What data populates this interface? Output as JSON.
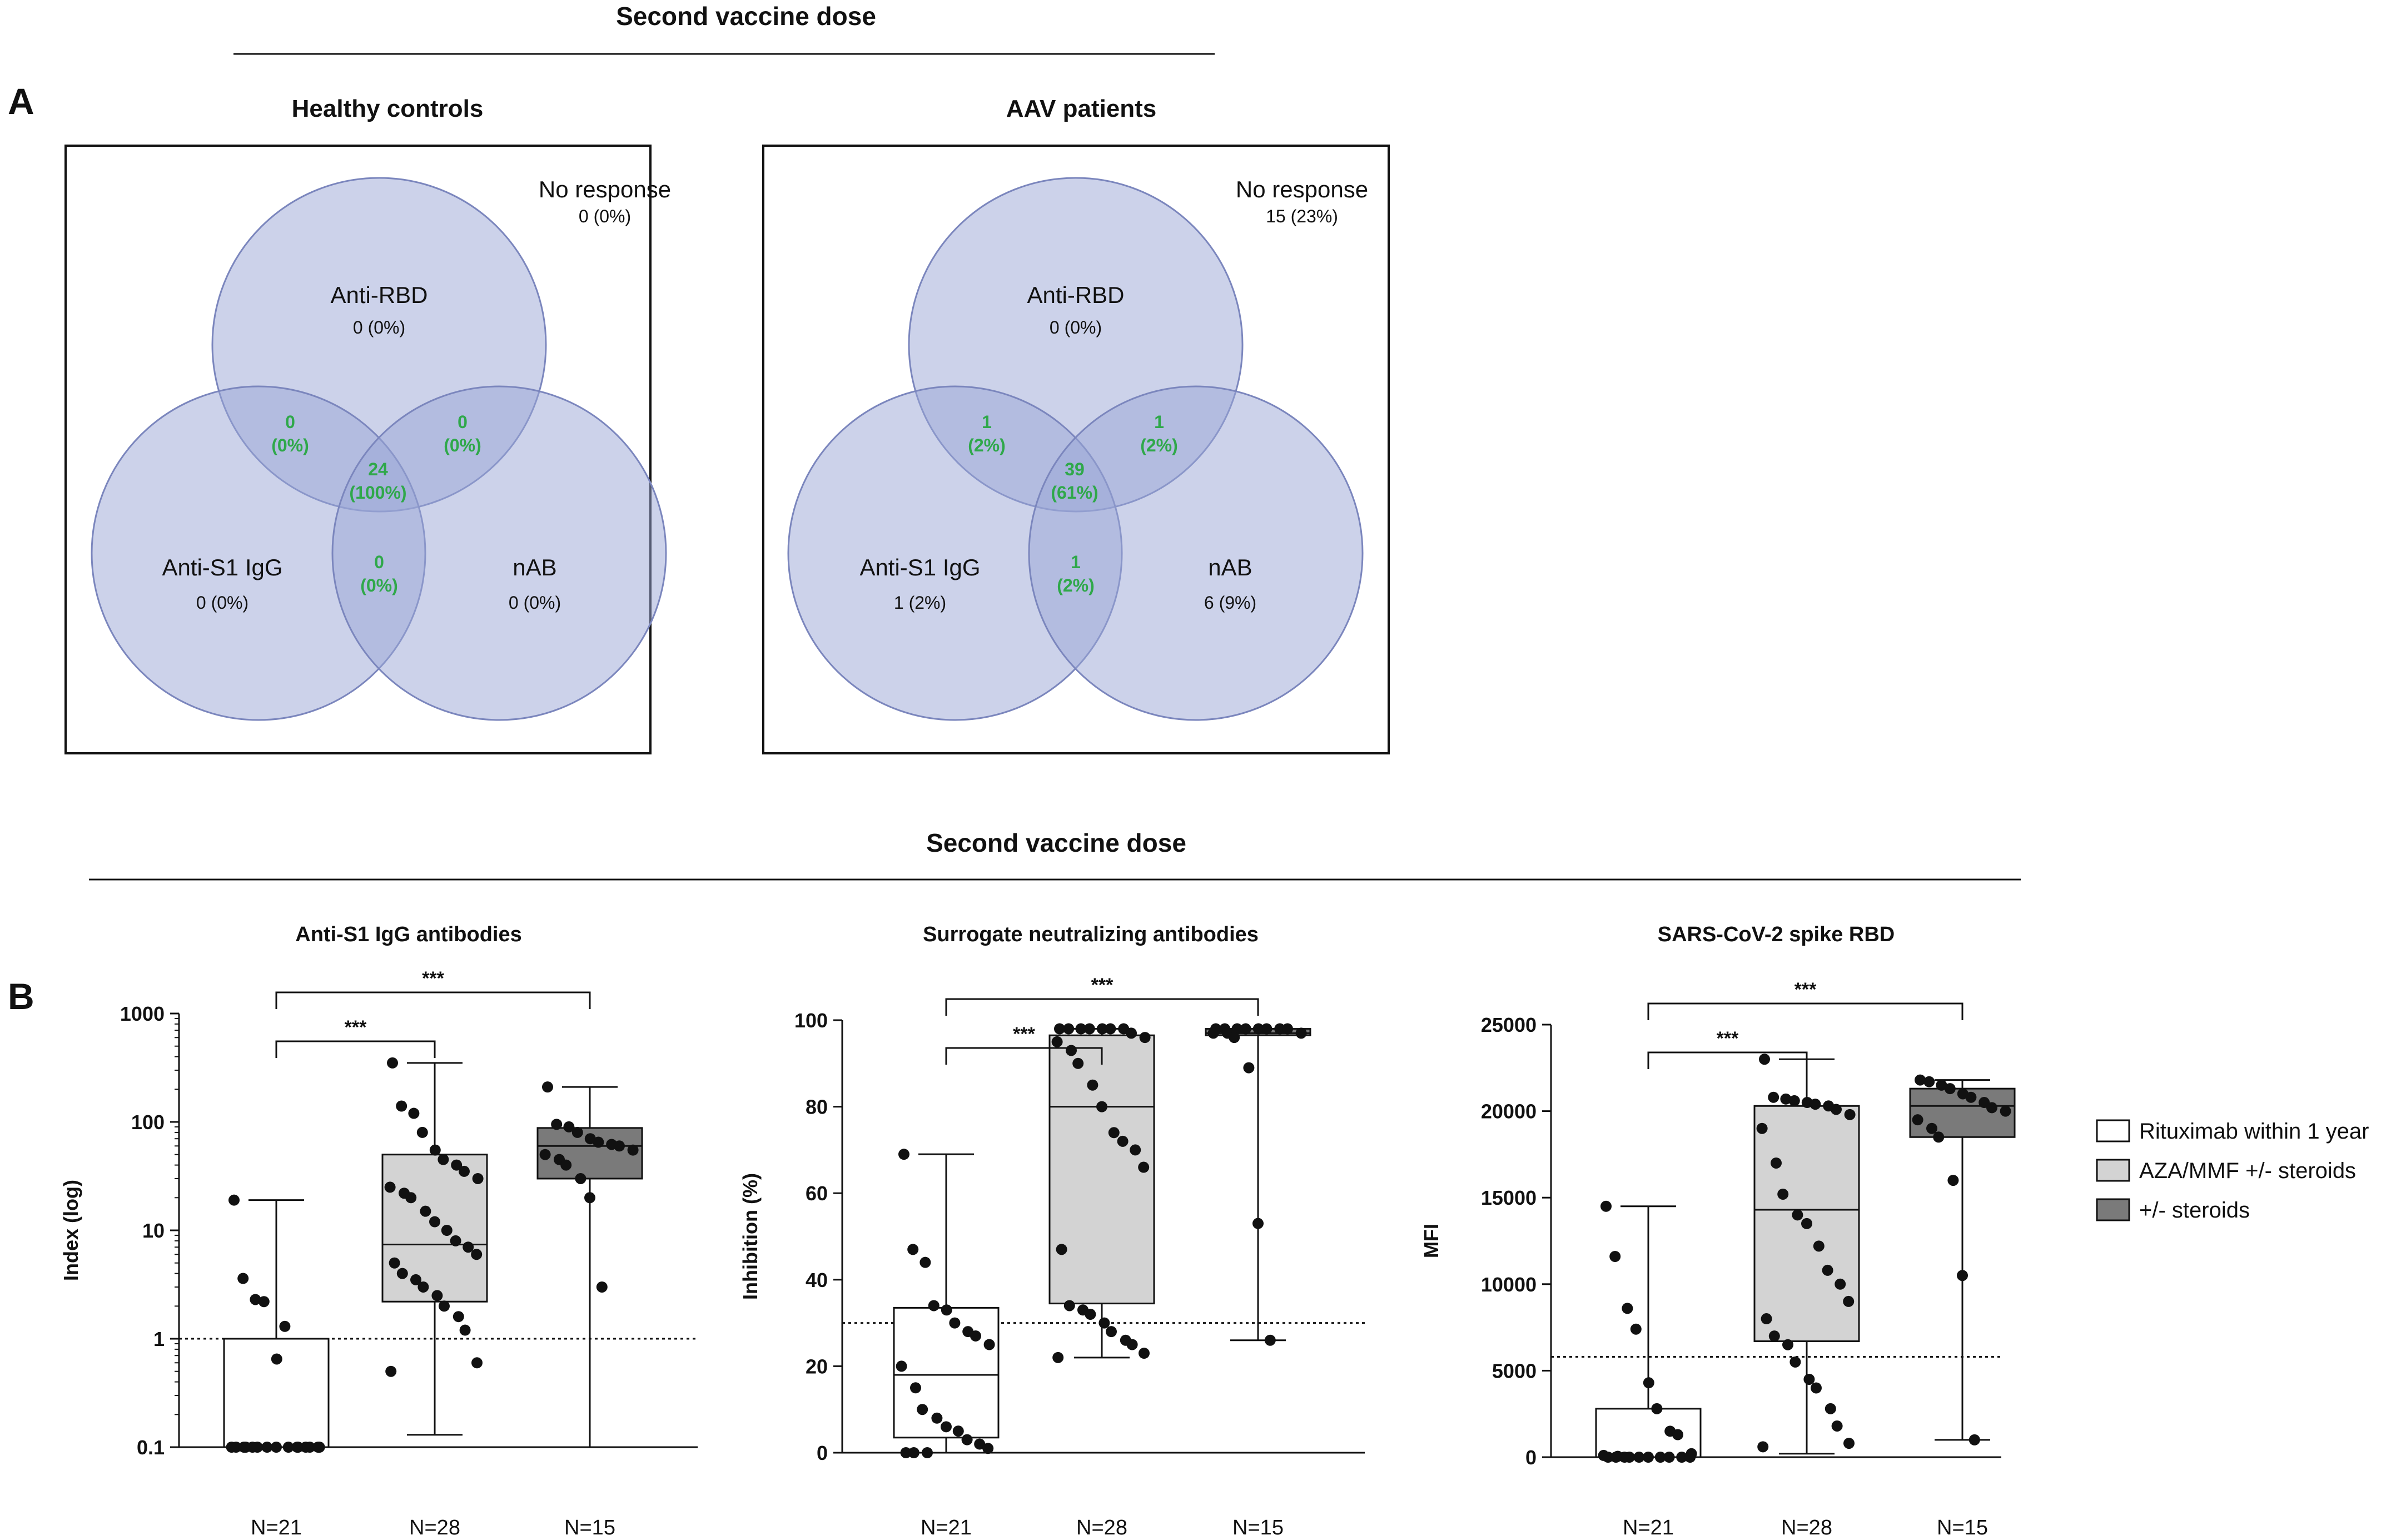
{
  "headers": {
    "top_title": "Second vaccine dose",
    "bottom_title": "Second vaccine dose",
    "panel_a": "A",
    "panel_b": "B"
  },
  "colors": {
    "circle_fill": "#9aa6d6",
    "circle_stroke": "#7b86bd",
    "overlap_text": "#2fa84a",
    "box_rituximab": "#ffffff",
    "box_aza": "#d3d3d3",
    "box_steroids": "#7a7a7a"
  },
  "venn": [
    {
      "title": "Healthy controls",
      "no_response_label": "No response",
      "no_response_value": "0 (0%)",
      "rbd_label": "Anti-RBD",
      "rbd_value": "0 (0%)",
      "s1_label": "Anti-S1 IgG",
      "s1_value": "0 (0%)",
      "nab_label": "nAB",
      "nab_value": "0 (0%)",
      "rbd_s1_n": "0",
      "rbd_s1_p": "(0%)",
      "rbd_nab_n": "0",
      "rbd_nab_p": "(0%)",
      "s1_nab_n": "0",
      "s1_nab_p": "(0%)",
      "all_n": "24",
      "all_p": "(100%)"
    },
    {
      "title": "AAV patients",
      "no_response_label": "No response",
      "no_response_value": "15 (23%)",
      "rbd_label": "Anti-RBD",
      "rbd_value": "0 (0%)",
      "s1_label": "Anti-S1 IgG",
      "s1_value": "1 (2%)",
      "nab_label": "nAB",
      "nab_value": "6 (9%)",
      "rbd_s1_n": "1",
      "rbd_s1_p": "(2%)",
      "rbd_nab_n": "1",
      "rbd_nab_p": "(2%)",
      "s1_nab_n": "1",
      "s1_nab_p": "(2%)",
      "all_n": "39",
      "all_p": "(61%)"
    }
  ],
  "legend": {
    "items": [
      {
        "label": "Rituximab within 1 year",
        "color": "#ffffff"
      },
      {
        "label": "AZA/MMF +/- steroids",
        "color": "#d3d3d3"
      },
      {
        "label": "+/- steroids",
        "color": "#7a7a7a"
      }
    ]
  },
  "chart_data": [
    {
      "type": "box",
      "title": "Anti-S1 IgG antibodies",
      "ylabel": "Index (log)",
      "yscale": "log",
      "ylim": [
        0.1,
        1000
      ],
      "yticks": [
        0.1,
        1,
        10,
        100,
        1000
      ],
      "ytick_labels": [
        "0.1",
        "1",
        "10",
        "100",
        "1000"
      ],
      "threshold": 1,
      "categories": [
        "N=21",
        "N=28",
        "N=15"
      ],
      "boxes": [
        {
          "min": 0.1,
          "q1": 0.1,
          "median": 0.1,
          "q3": 1.0,
          "max": 19
        },
        {
          "min": 0.13,
          "q1": 2.2,
          "median": 7.4,
          "q3": 50,
          "max": 350
        },
        {
          "min": 0.1,
          "q1": 30,
          "median": 60,
          "q3": 88,
          "max": 210
        }
      ],
      "points": [
        [
          19,
          3.6,
          2.3,
          2.2,
          0.65,
          1.3,
          0.1,
          0.1,
          0.1,
          0.1,
          0.1,
          0.1,
          0.1,
          0.1,
          0.1,
          0.1,
          0.1,
          0.1,
          0.1,
          0.1,
          0.1
        ],
        [
          350,
          140,
          120,
          80,
          55,
          45,
          40,
          35,
          30,
          25,
          22,
          20,
          15,
          12,
          10,
          8,
          7,
          6,
          5,
          4,
          3.5,
          3,
          2.5,
          2,
          1.6,
          1.2,
          0.6,
          0.5
        ],
        [
          210,
          95,
          90,
          80,
          70,
          65,
          62,
          60,
          55,
          50,
          45,
          40,
          30,
          20,
          3
        ]
      ],
      "significance": [
        {
          "from": 0,
          "to": 1,
          "label": "***"
        },
        {
          "from": 0,
          "to": 2,
          "label": "***"
        }
      ]
    },
    {
      "type": "box",
      "title": "Surrogate neutralizing antibodies",
      "ylabel": "Inhibition (%)",
      "yscale": "linear",
      "ylim": [
        0,
        100
      ],
      "yticks": [
        0,
        20,
        40,
        60,
        80,
        100
      ],
      "ytick_labels": [
        "0",
        "20",
        "40",
        "60",
        "80",
        "100"
      ],
      "threshold": 30,
      "categories": [
        "N=21",
        "N=28",
        "N=15"
      ],
      "boxes": [
        {
          "min": 0,
          "q1": 3.5,
          "median": 18,
          "q3": 33.5,
          "max": 69
        },
        {
          "min": 22,
          "q1": 34.5,
          "median": 80,
          "q3": 96.5,
          "max": 98
        },
        {
          "min": 26,
          "q1": 96.5,
          "median": 97,
          "q3": 98,
          "max": 98
        }
      ],
      "points": [
        [
          69,
          47,
          44,
          34,
          33,
          30,
          28,
          27,
          25,
          20,
          15,
          10,
          8,
          6,
          5,
          3,
          2,
          1,
          0,
          0,
          0
        ],
        [
          98,
          98,
          98,
          98,
          98,
          98,
          98,
          97,
          96,
          95,
          93,
          90,
          85,
          80,
          74,
          72,
          70,
          66,
          47,
          34,
          33,
          32,
          30,
          28,
          26,
          25,
          23,
          22
        ],
        [
          98,
          98,
          98,
          98,
          98,
          98,
          98,
          98,
          97,
          97,
          97,
          96,
          89,
          53,
          26
        ]
      ],
      "significance": [
        {
          "from": 0,
          "to": 1,
          "label": "***"
        },
        {
          "from": 0,
          "to": 2,
          "label": "***"
        }
      ]
    },
    {
      "type": "box",
      "title": "SARS-CoV-2 spike RBD",
      "ylabel": "MFI",
      "yscale": "linear",
      "ylim": [
        0,
        25000
      ],
      "yticks": [
        0,
        5000,
        10000,
        15000,
        20000,
        25000
      ],
      "ytick_labels": [
        "0",
        "5000",
        "10000",
        "15000",
        "20000",
        "25000"
      ],
      "threshold": 5800,
      "categories": [
        "N=21",
        "N=28",
        "N=15"
      ],
      "boxes": [
        {
          "min": 0,
          "q1": 0,
          "median": 0,
          "q3": 2800,
          "max": 14500
        },
        {
          "min": 200,
          "q1": 6700,
          "median": 14300,
          "q3": 20300,
          "max": 23000
        },
        {
          "min": 1000,
          "q1": 18500,
          "median": 20300,
          "q3": 21300,
          "max": 21800
        }
      ],
      "points": [
        [
          14500,
          11600,
          8600,
          7400,
          4300,
          2800,
          1500,
          1300,
          200,
          100,
          50,
          0,
          0,
          0,
          0,
          0,
          0,
          0,
          0,
          0,
          0
        ],
        [
          23000,
          20800,
          20700,
          20600,
          20500,
          20400,
          20300,
          20100,
          19800,
          19000,
          17000,
          15200,
          14000,
          13500,
          12200,
          10800,
          10000,
          9000,
          8000,
          7000,
          6500,
          5500,
          4500,
          4000,
          2800,
          1800,
          800,
          600
        ],
        [
          21800,
          21700,
          21500,
          21300,
          21000,
          20800,
          20500,
          20200,
          20000,
          19500,
          19000,
          18500,
          16000,
          10500,
          1000
        ]
      ],
      "significance": [
        {
          "from": 0,
          "to": 1,
          "label": "***"
        },
        {
          "from": 0,
          "to": 2,
          "label": "***"
        }
      ]
    }
  ]
}
